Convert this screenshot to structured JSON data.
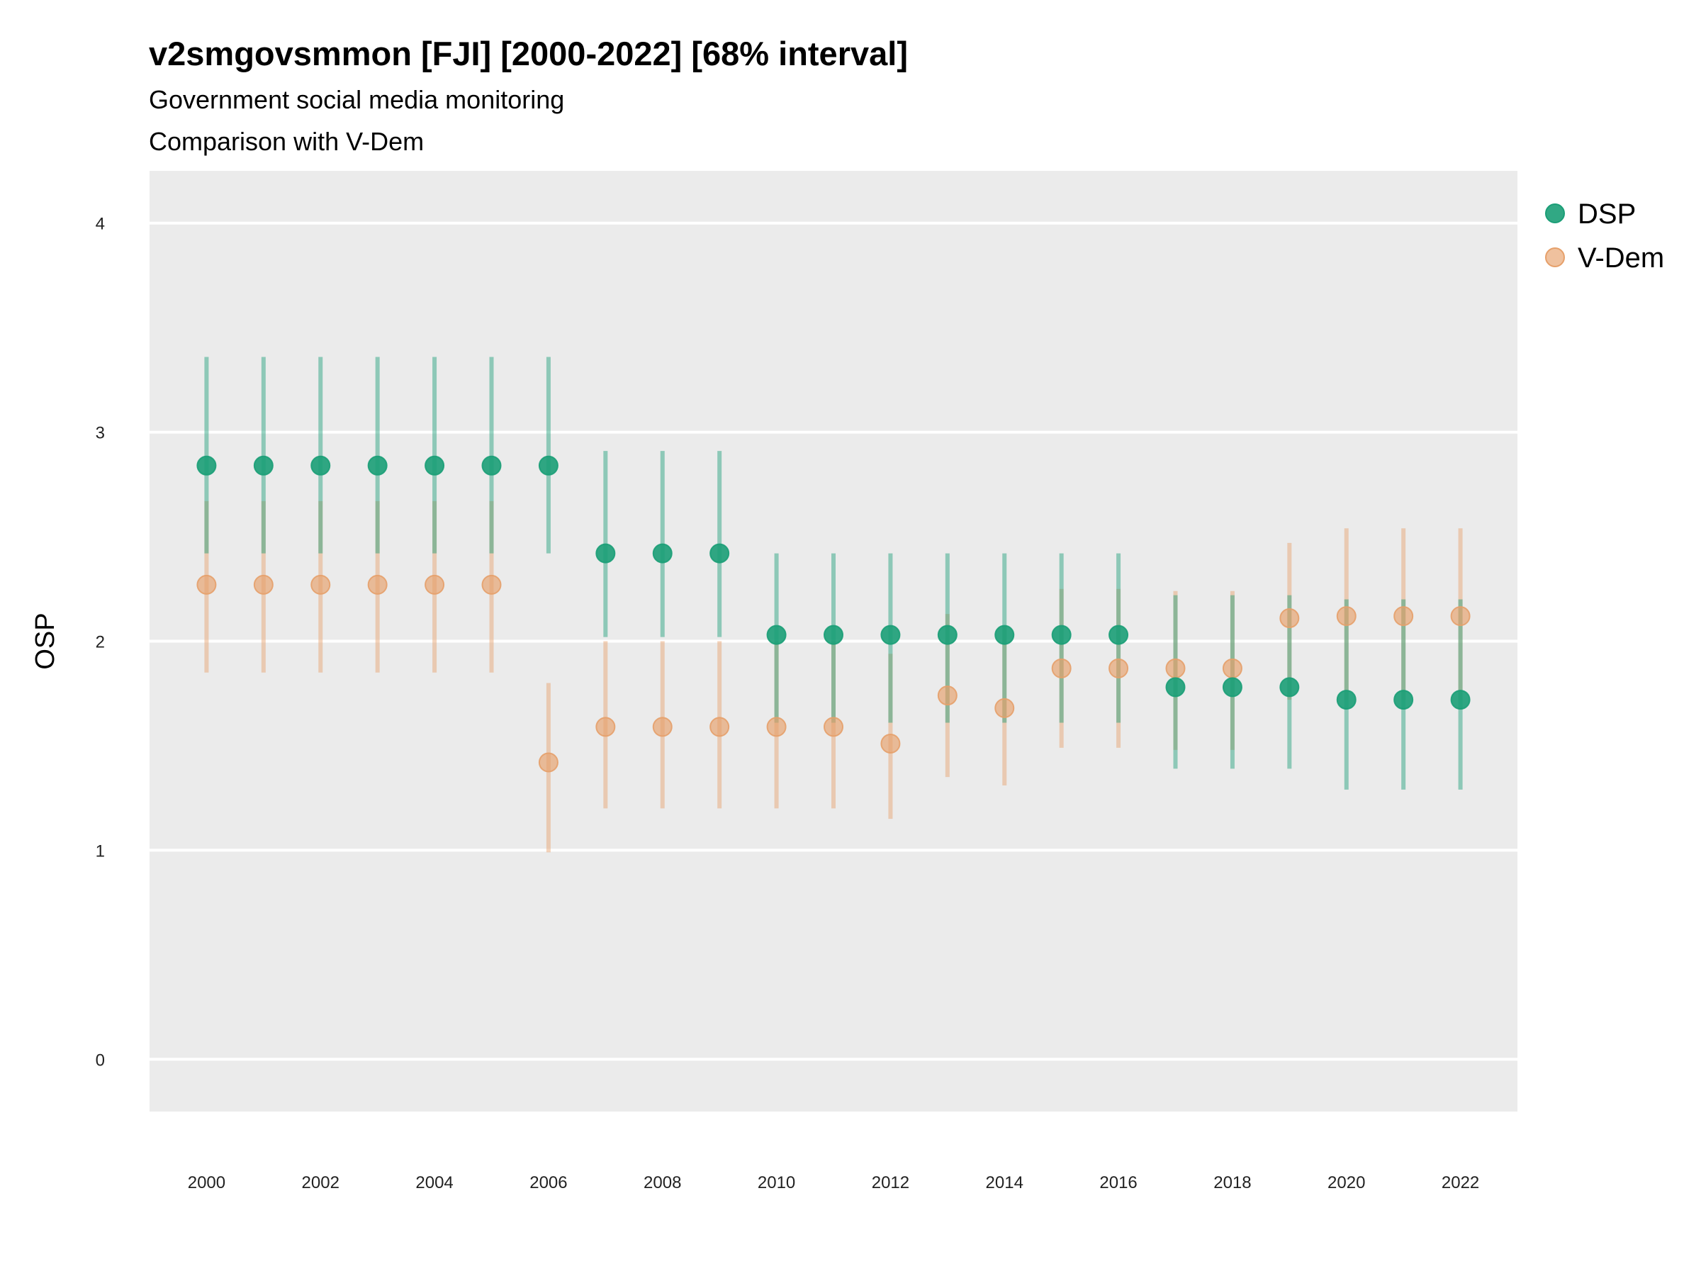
{
  "chart_data": {
    "type": "scatter",
    "title": "v2smgovsmmon [FJI] [2000-2022] [68% interval]",
    "subtitle": "Government social media monitoring",
    "subtitle2": "Comparison with V-Dem",
    "xlabel": "",
    "ylabel": "OSP",
    "xlim": [
      1999,
      2023
    ],
    "ylim": [
      -0.25,
      4.25
    ],
    "x_ticks": [
      2000,
      2002,
      2004,
      2006,
      2008,
      2010,
      2012,
      2014,
      2016,
      2018,
      2020,
      2022
    ],
    "y_ticks": [
      0,
      1,
      2,
      3,
      4
    ],
    "grid": true,
    "legend_position": "right",
    "x": [
      2000,
      2001,
      2002,
      2003,
      2004,
      2005,
      2006,
      2007,
      2008,
      2009,
      2010,
      2011,
      2012,
      2013,
      2014,
      2015,
      2016,
      2017,
      2018,
      2019,
      2020,
      2021,
      2022
    ],
    "series": [
      {
        "name": "DSP",
        "color": "#1b9e77",
        "values": [
          2.84,
          2.84,
          2.84,
          2.84,
          2.84,
          2.84,
          2.84,
          2.42,
          2.42,
          2.42,
          2.03,
          2.03,
          2.03,
          2.03,
          2.03,
          2.03,
          2.03,
          1.78,
          1.78,
          1.78,
          1.72,
          1.72,
          1.72
        ],
        "lower": [
          2.42,
          2.42,
          2.42,
          2.42,
          2.42,
          2.42,
          2.42,
          2.02,
          2.02,
          2.02,
          1.61,
          1.61,
          1.61,
          1.61,
          1.61,
          1.61,
          1.61,
          1.39,
          1.39,
          1.39,
          1.29,
          1.29,
          1.29
        ],
        "upper": [
          3.36,
          3.36,
          3.36,
          3.36,
          3.36,
          3.36,
          3.36,
          2.91,
          2.91,
          2.91,
          2.42,
          2.42,
          2.42,
          2.42,
          2.42,
          2.42,
          2.42,
          2.22,
          2.22,
          2.22,
          2.2,
          2.2,
          2.2
        ]
      },
      {
        "name": "V-Dem",
        "color": "#e6a06a",
        "values": [
          2.27,
          2.27,
          2.27,
          2.27,
          2.27,
          2.27,
          1.42,
          1.59,
          1.59,
          1.59,
          1.59,
          1.59,
          1.51,
          1.74,
          1.68,
          1.87,
          1.87,
          1.87,
          1.87,
          2.11,
          2.12,
          2.12,
          2.12
        ],
        "lower": [
          1.85,
          1.85,
          1.85,
          1.85,
          1.85,
          1.85,
          0.99,
          1.2,
          1.2,
          1.2,
          1.2,
          1.2,
          1.15,
          1.35,
          1.31,
          1.49,
          1.49,
          1.48,
          1.48,
          1.72,
          1.72,
          1.72,
          1.72
        ],
        "upper": [
          2.67,
          2.67,
          2.67,
          2.67,
          2.67,
          2.67,
          1.8,
          2.0,
          2.0,
          2.0,
          2.0,
          2.0,
          1.94,
          2.13,
          2.07,
          2.25,
          2.25,
          2.24,
          2.24,
          2.47,
          2.54,
          2.54,
          2.54
        ]
      }
    ]
  }
}
